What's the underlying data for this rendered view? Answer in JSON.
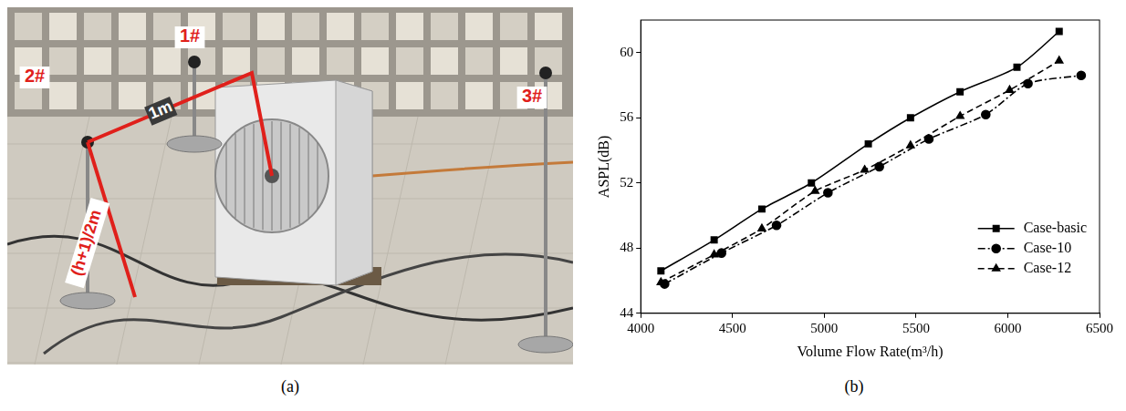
{
  "panel_labels": [
    "(a)",
    "(b)"
  ],
  "photo": {
    "points": [
      "1#",
      "2#",
      "3#"
    ],
    "dimensions": [
      "1m",
      "(h+1)/2m"
    ]
  },
  "chart_data": {
    "type": "line",
    "x_label": "Volume Flow Rate(m³/h)",
    "y_label": "ASPL(dB)",
    "xlim": [
      4000,
      6500
    ],
    "xticks": [
      4000,
      4500,
      5000,
      5500,
      6000,
      6500
    ],
    "ylim": [
      44,
      62
    ],
    "yticks": [
      44,
      48,
      52,
      56,
      60
    ],
    "grid": false,
    "legend": "lower right",
    "series": [
      {
        "name": "Case-basic",
        "color": "#000000",
        "marker": "square",
        "line_style": "solid",
        "x": [
          4110,
          4400,
          4660,
          4930,
          5240,
          5470,
          5740,
          6050,
          6280
        ],
        "values": [
          46.6,
          48.5,
          50.4,
          52.0,
          54.4,
          56.0,
          57.6,
          59.1,
          61.3
        ]
      },
      {
        "name": "Case-10",
        "color": "#000000",
        "marker": "circle",
        "line_style": "dashdot",
        "x": [
          4130,
          4440,
          4740,
          5020,
          5300,
          5570,
          5880,
          6110,
          6400
        ],
        "values": [
          45.8,
          47.7,
          49.4,
          51.4,
          53.0,
          54.7,
          56.2,
          58.1,
          58.6
        ]
      },
      {
        "name": "Case-12",
        "color": "#000000",
        "marker": "triangle",
        "line_style": "dashed",
        "x": [
          4110,
          4400,
          4660,
          4950,
          5220,
          5470,
          5740,
          6010,
          6280
        ],
        "values": [
          45.9,
          47.6,
          49.2,
          51.5,
          52.8,
          54.3,
          56.1,
          57.7,
          59.5
        ]
      }
    ]
  }
}
